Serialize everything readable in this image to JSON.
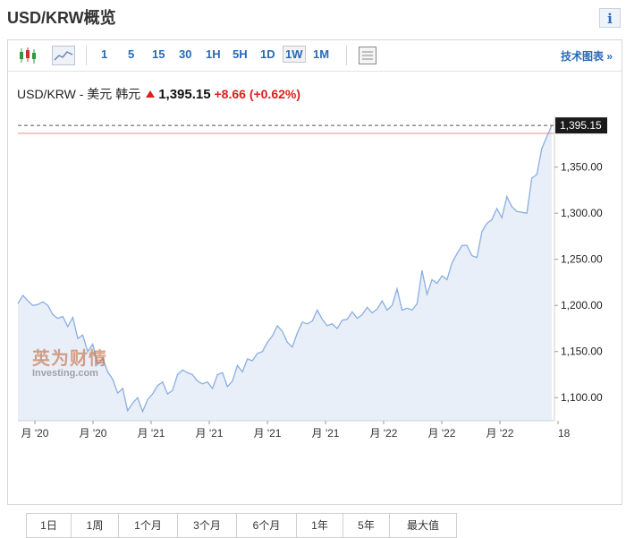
{
  "page": {
    "title": "USD/KRW概览",
    "info_label": "i"
  },
  "toolbar": {
    "intervals": [
      "1",
      "5",
      "15",
      "30",
      "1H",
      "5H",
      "1D",
      "1W",
      "1M"
    ],
    "active_interval": "1W",
    "tech_chart_label": "技术图表 »"
  },
  "quote": {
    "name": "USD/KRW - 美元 韩元",
    "price": "1,395.15",
    "change": "+8.66",
    "change_pct": "(+0.62%)"
  },
  "watermark": {
    "cn": "英为财情",
    "en": "Investing.com"
  },
  "ranges": [
    "1日",
    "1周",
    "1个月",
    "3个月",
    "6个月",
    "1年",
    "5年",
    "最大值"
  ],
  "colors": {
    "line": "#8aaee0",
    "area": "#e9eff9",
    "up": "#e01d1d",
    "accent": "#2a6ab7"
  },
  "chart_data": {
    "type": "area",
    "last_value_label": "1,395.15",
    "prev_close": 1386.5,
    "ylim": [
      1075,
      1405
    ],
    "y_ticks": [
      1100,
      1150,
      1200,
      1250,
      1300,
      1350
    ],
    "y_tick_labels": [
      "1,100.00",
      "1,150.00",
      "1,200.00",
      "1,250.00",
      "1,300.00",
      "1,350.00"
    ],
    "x_tick_labels": [
      "月 '20",
      "月 '20",
      "月 '21",
      "月 '21",
      "月 '21",
      "月 '21",
      "月 '22",
      "月 '22",
      "月 '22",
      "18"
    ],
    "grid": false,
    "values": [
      1202,
      1211,
      1205,
      1200,
      1201,
      1204,
      1200,
      1190,
      1186,
      1188,
      1177,
      1187,
      1164,
      1168,
      1150,
      1158,
      1136,
      1143,
      1128,
      1120,
      1105,
      1110,
      1086,
      1094,
      1100,
      1085,
      1098,
      1104,
      1113,
      1117,
      1104,
      1108,
      1125,
      1130,
      1127,
      1125,
      1118,
      1115,
      1117,
      1110,
      1125,
      1127,
      1112,
      1118,
      1135,
      1128,
      1142,
      1140,
      1148,
      1150,
      1160,
      1167,
      1178,
      1172,
      1160,
      1155,
      1170,
      1182,
      1180,
      1183,
      1195,
      1185,
      1178,
      1180,
      1175,
      1184,
      1185,
      1193,
      1186,
      1190,
      1198,
      1192,
      1196,
      1205,
      1195,
      1200,
      1218,
      1195,
      1197,
      1195,
      1202,
      1238,
      1212,
      1228,
      1224,
      1232,
      1228,
      1246,
      1256,
      1265,
      1265,
      1254,
      1252,
      1280,
      1289,
      1293,
      1305,
      1295,
      1318,
      1307,
      1302,
      1301,
      1300,
      1338,
      1342,
      1370,
      1383,
      1395.15
    ]
  }
}
